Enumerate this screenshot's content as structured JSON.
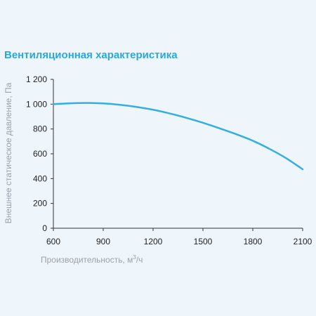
{
  "chart_data": {
    "type": "line",
    "title": "Вентиляционная характеристика",
    "xlabel_main": "Производительность, м",
    "xlabel_sup": "3",
    "xlabel_tail": "/ч",
    "ylabel": "Внешнее статическое давление, Па",
    "xlim": [
      600,
      2100
    ],
    "ylim": [
      0,
      1200
    ],
    "x_ticks": [
      600,
      900,
      1200,
      1500,
      1800,
      2100
    ],
    "y_ticks": [
      0,
      200,
      400,
      600,
      800,
      1000,
      1200
    ],
    "y_tick_labels": [
      "0",
      "200",
      "400",
      "600",
      "800",
      "1 000",
      "1 200"
    ],
    "grid": false,
    "series": [
      {
        "color": "#35aee3",
        "x": [
          600,
          700,
          800,
          900,
          1000,
          1100,
          1200,
          1300,
          1400,
          1500,
          1600,
          1700,
          1800,
          1900,
          2000,
          2100
        ],
        "y": [
          1000,
          1007,
          1010,
          1006,
          995,
          978,
          955,
          925,
          890,
          850,
          805,
          758,
          705,
          640,
          565,
          475
        ]
      }
    ]
  }
}
